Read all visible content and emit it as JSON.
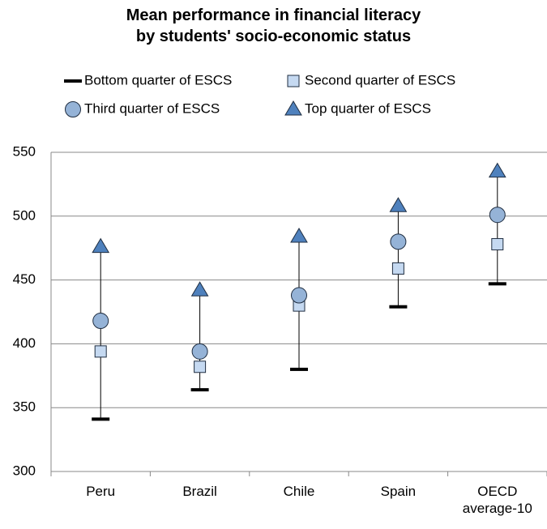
{
  "chart_data": {
    "type": "dot",
    "title": "Mean performance in financial literacy",
    "subtitle": "by students' socio-economic status",
    "categories": [
      "Peru",
      "Brazil",
      "Chile",
      "Spain",
      "OECD average-10"
    ],
    "series": [
      {
        "name": "Bottom quarter of ESCS",
        "marker": "dash",
        "color": "#000000",
        "values": [
          341,
          364,
          380,
          429,
          447
        ]
      },
      {
        "name": "Second quarter of ESCS",
        "marker": "square",
        "color": "#c5d9f1",
        "values": [
          394,
          382,
          430,
          459,
          478
        ]
      },
      {
        "name": "Third quarter of ESCS",
        "marker": "circle",
        "color": "#95b3d7",
        "values": [
          418,
          394,
          438,
          480,
          501
        ]
      },
      {
        "name": "Top quarter of ESCS",
        "marker": "triangle",
        "color": "#4f81bd",
        "values": [
          476,
          442,
          484,
          508,
          535
        ]
      }
    ],
    "ylim": [
      300,
      550
    ],
    "yticks": [
      300,
      350,
      400,
      450,
      500,
      550
    ],
    "grid": true
  }
}
